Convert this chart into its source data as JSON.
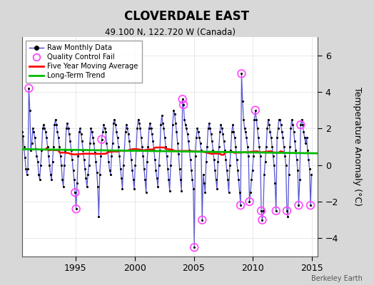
{
  "title": "CLOVERDALE EAST",
  "subtitle": "49.100 N, 122.720 W (Canada)",
  "ylabel": "Temperature Anomaly (°C)",
  "attribution": "Berkeley Earth",
  "xlim": [
    1990.5,
    2015.5
  ],
  "ylim": [
    -5.0,
    7.0
  ],
  "yticks": [
    -4,
    -2,
    0,
    2,
    4,
    6
  ],
  "xticks": [
    1995,
    2000,
    2005,
    2010,
    2015
  ],
  "bg_color": "#d8d8d8",
  "plot_bg_color": "#ffffff",
  "line_color": "#4444cc",
  "dot_color": "#000000",
  "ma_color": "#ff0000",
  "trend_color": "#00bb00",
  "qc_color": "#ff44ff",
  "raw_data": [
    [
      1990.042,
      0.6
    ],
    [
      1990.125,
      2.2
    ],
    [
      1990.208,
      1.3
    ],
    [
      1990.292,
      0.8
    ],
    [
      1990.375,
      1.5
    ],
    [
      1990.458,
      1.8
    ],
    [
      1990.542,
      1.6
    ],
    [
      1990.625,
      1.0
    ],
    [
      1990.708,
      0.4
    ],
    [
      1990.792,
      -0.2
    ],
    [
      1990.875,
      -0.5
    ],
    [
      1990.958,
      -0.2
    ],
    [
      1991.042,
      4.2
    ],
    [
      1991.125,
      3.0
    ],
    [
      1991.208,
      0.8
    ],
    [
      1991.292,
      1.2
    ],
    [
      1991.375,
      2.0
    ],
    [
      1991.458,
      1.8
    ],
    [
      1991.542,
      1.5
    ],
    [
      1991.625,
      0.9
    ],
    [
      1991.708,
      0.5
    ],
    [
      1991.792,
      0.2
    ],
    [
      1991.875,
      -0.5
    ],
    [
      1991.958,
      -0.8
    ],
    [
      1992.042,
      0.0
    ],
    [
      1992.125,
      0.8
    ],
    [
      1992.208,
      2.0
    ],
    [
      1992.292,
      2.2
    ],
    [
      1992.375,
      2.0
    ],
    [
      1992.458,
      1.8
    ],
    [
      1992.542,
      1.5
    ],
    [
      1992.625,
      1.0
    ],
    [
      1992.708,
      0.5
    ],
    [
      1992.792,
      0.0
    ],
    [
      1992.875,
      -0.5
    ],
    [
      1992.958,
      -0.8
    ],
    [
      1993.042,
      0.2
    ],
    [
      1993.125,
      1.0
    ],
    [
      1993.208,
      2.2
    ],
    [
      1993.292,
      2.5
    ],
    [
      1993.375,
      2.2
    ],
    [
      1993.458,
      1.8
    ],
    [
      1993.542,
      1.5
    ],
    [
      1993.625,
      1.0
    ],
    [
      1993.708,
      0.5
    ],
    [
      1993.792,
      0.0
    ],
    [
      1993.875,
      -0.8
    ],
    [
      1993.958,
      -1.2
    ],
    [
      1994.042,
      0.0
    ],
    [
      1994.125,
      0.8
    ],
    [
      1994.208,
      2.0
    ],
    [
      1994.292,
      2.3
    ],
    [
      1994.375,
      2.0
    ],
    [
      1994.458,
      1.7
    ],
    [
      1994.542,
      1.3
    ],
    [
      1994.625,
      0.8
    ],
    [
      1994.708,
      0.3
    ],
    [
      1994.792,
      -0.3
    ],
    [
      1994.875,
      -0.8
    ],
    [
      1994.958,
      -1.5
    ],
    [
      1995.042,
      -2.4
    ],
    [
      1995.125,
      -1.0
    ],
    [
      1995.208,
      0.5
    ],
    [
      1995.292,
      1.8
    ],
    [
      1995.375,
      2.0
    ],
    [
      1995.458,
      1.7
    ],
    [
      1995.542,
      1.3
    ],
    [
      1995.625,
      0.8
    ],
    [
      1995.708,
      0.3
    ],
    [
      1995.792,
      -0.2
    ],
    [
      1995.875,
      -0.7
    ],
    [
      1995.958,
      -1.2
    ],
    [
      1996.042,
      -0.5
    ],
    [
      1996.125,
      0.0
    ],
    [
      1996.208,
      1.2
    ],
    [
      1996.292,
      2.0
    ],
    [
      1996.375,
      1.8
    ],
    [
      1996.458,
      1.5
    ],
    [
      1996.542,
      1.2
    ],
    [
      1996.625,
      0.7
    ],
    [
      1996.708,
      0.2
    ],
    [
      1996.792,
      -0.4
    ],
    [
      1996.875,
      -1.2
    ],
    [
      1996.958,
      -2.8
    ],
    [
      1997.042,
      -0.5
    ],
    [
      1997.125,
      0.5
    ],
    [
      1997.208,
      1.4
    ],
    [
      1997.292,
      1.8
    ],
    [
      1997.375,
      2.2
    ],
    [
      1997.458,
      2.0
    ],
    [
      1997.542,
      1.8
    ],
    [
      1997.625,
      1.2
    ],
    [
      1997.708,
      0.8
    ],
    [
      1997.792,
      0.2
    ],
    [
      1997.875,
      -0.3
    ],
    [
      1997.958,
      -0.5
    ],
    [
      1998.042,
      0.5
    ],
    [
      1998.125,
      1.2
    ],
    [
      1998.208,
      2.3
    ],
    [
      1998.292,
      2.5
    ],
    [
      1998.375,
      2.2
    ],
    [
      1998.458,
      1.8
    ],
    [
      1998.542,
      1.5
    ],
    [
      1998.625,
      1.0
    ],
    [
      1998.708,
      0.5
    ],
    [
      1998.792,
      -0.2
    ],
    [
      1998.875,
      -0.7
    ],
    [
      1998.958,
      -1.3
    ],
    [
      1999.042,
      0.0
    ],
    [
      1999.125,
      0.8
    ],
    [
      1999.208,
      1.8
    ],
    [
      1999.292,
      2.2
    ],
    [
      1999.375,
      2.0
    ],
    [
      1999.458,
      1.7
    ],
    [
      1999.542,
      1.3
    ],
    [
      1999.625,
      0.8
    ],
    [
      1999.708,
      0.3
    ],
    [
      1999.792,
      -0.3
    ],
    [
      1999.875,
      -0.8
    ],
    [
      1999.958,
      -1.3
    ],
    [
      2000.042,
      0.0
    ],
    [
      2000.125,
      0.8
    ],
    [
      2000.208,
      2.0
    ],
    [
      2000.292,
      2.5
    ],
    [
      2000.375,
      2.3
    ],
    [
      2000.458,
      2.0
    ],
    [
      2000.542,
      1.5
    ],
    [
      2000.625,
      1.0
    ],
    [
      2000.708,
      0.5
    ],
    [
      2000.792,
      -0.2
    ],
    [
      2000.875,
      -0.8
    ],
    [
      2000.958,
      -1.5
    ],
    [
      2001.042,
      0.2
    ],
    [
      2001.125,
      1.0
    ],
    [
      2001.208,
      2.0
    ],
    [
      2001.292,
      2.3
    ],
    [
      2001.375,
      2.0
    ],
    [
      2001.458,
      1.7
    ],
    [
      2001.542,
      1.3
    ],
    [
      2001.625,
      0.8
    ],
    [
      2001.708,
      0.3
    ],
    [
      2001.792,
      -0.3
    ],
    [
      2001.875,
      -0.7
    ],
    [
      2001.958,
      -1.2
    ],
    [
      2002.042,
      0.0
    ],
    [
      2002.125,
      0.8
    ],
    [
      2002.208,
      2.2
    ],
    [
      2002.292,
      2.7
    ],
    [
      2002.375,
      2.3
    ],
    [
      2002.458,
      2.0
    ],
    [
      2002.542,
      1.5
    ],
    [
      2002.625,
      1.0
    ],
    [
      2002.708,
      0.5
    ],
    [
      2002.792,
      -0.2
    ],
    [
      2002.875,
      -0.8
    ],
    [
      2002.958,
      -1.4
    ],
    [
      2003.042,
      0.0
    ],
    [
      2003.125,
      0.8
    ],
    [
      2003.208,
      2.2
    ],
    [
      2003.292,
      3.0
    ],
    [
      2003.375,
      2.8
    ],
    [
      2003.458,
      2.3
    ],
    [
      2003.542,
      1.8
    ],
    [
      2003.625,
      1.2
    ],
    [
      2003.708,
      0.6
    ],
    [
      2003.792,
      -0.2
    ],
    [
      2003.875,
      -0.8
    ],
    [
      2003.958,
      -1.4
    ],
    [
      2004.042,
      3.6
    ],
    [
      2004.125,
      3.3
    ],
    [
      2004.208,
      2.5
    ],
    [
      2004.292,
      2.2
    ],
    [
      2004.375,
      2.0
    ],
    [
      2004.458,
      1.7
    ],
    [
      2004.542,
      1.3
    ],
    [
      2004.625,
      0.8
    ],
    [
      2004.708,
      0.3
    ],
    [
      2004.792,
      -0.3
    ],
    [
      2004.875,
      -0.8
    ],
    [
      2004.958,
      -1.3
    ],
    [
      2005.042,
      -4.5
    ],
    [
      2005.125,
      0.5
    ],
    [
      2005.208,
      1.5
    ],
    [
      2005.292,
      2.0
    ],
    [
      2005.375,
      1.8
    ],
    [
      2005.458,
      1.5
    ],
    [
      2005.542,
      1.2
    ],
    [
      2005.625,
      0.8
    ],
    [
      2005.708,
      -3.0
    ],
    [
      2005.792,
      -0.5
    ],
    [
      2005.875,
      -1.0
    ],
    [
      2005.958,
      -1.5
    ],
    [
      2006.042,
      0.2
    ],
    [
      2006.125,
      1.0
    ],
    [
      2006.208,
      2.0
    ],
    [
      2006.292,
      2.3
    ],
    [
      2006.375,
      2.0
    ],
    [
      2006.458,
      1.7
    ],
    [
      2006.542,
      1.3
    ],
    [
      2006.625,
      0.8
    ],
    [
      2006.708,
      0.3
    ],
    [
      2006.792,
      -0.3
    ],
    [
      2006.875,
      -0.8
    ],
    [
      2006.958,
      -1.3
    ],
    [
      2007.042,
      0.2
    ],
    [
      2007.125,
      1.0
    ],
    [
      2007.208,
      1.8
    ],
    [
      2007.292,
      2.2
    ],
    [
      2007.375,
      2.0
    ],
    [
      2007.458,
      1.7
    ],
    [
      2007.542,
      1.3
    ],
    [
      2007.625,
      0.8
    ],
    [
      2007.708,
      0.3
    ],
    [
      2007.792,
      -0.3
    ],
    [
      2007.875,
      -0.8
    ],
    [
      2007.958,
      -1.5
    ],
    [
      2008.042,
      0.0
    ],
    [
      2008.125,
      0.8
    ],
    [
      2008.208,
      1.8
    ],
    [
      2008.292,
      2.2
    ],
    [
      2008.375,
      1.8
    ],
    [
      2008.458,
      1.5
    ],
    [
      2008.542,
      1.0
    ],
    [
      2008.625,
      0.3
    ],
    [
      2008.708,
      -0.3
    ],
    [
      2008.792,
      -0.8
    ],
    [
      2008.875,
      -1.5
    ],
    [
      2008.958,
      -2.2
    ],
    [
      2009.042,
      5.0
    ],
    [
      2009.125,
      3.5
    ],
    [
      2009.208,
      2.5
    ],
    [
      2009.292,
      2.0
    ],
    [
      2009.375,
      1.8
    ],
    [
      2009.458,
      1.5
    ],
    [
      2009.542,
      1.0
    ],
    [
      2009.625,
      0.5
    ],
    [
      2009.708,
      -2.0
    ],
    [
      2009.792,
      -1.5
    ],
    [
      2009.875,
      -0.8
    ],
    [
      2009.958,
      -0.3
    ],
    [
      2010.042,
      0.5
    ],
    [
      2010.125,
      2.5
    ],
    [
      2010.208,
      3.0
    ],
    [
      2010.292,
      2.5
    ],
    [
      2010.375,
      2.0
    ],
    [
      2010.458,
      1.5
    ],
    [
      2010.542,
      1.0
    ],
    [
      2010.625,
      0.5
    ],
    [
      2010.708,
      -2.5
    ],
    [
      2010.792,
      -3.0
    ],
    [
      2010.875,
      -2.5
    ],
    [
      2010.958,
      -0.5
    ],
    [
      2011.042,
      0.2
    ],
    [
      2011.125,
      1.0
    ],
    [
      2011.208,
      2.0
    ],
    [
      2011.292,
      2.5
    ],
    [
      2011.375,
      2.2
    ],
    [
      2011.458,
      1.8
    ],
    [
      2011.542,
      1.5
    ],
    [
      2011.625,
      1.0
    ],
    [
      2011.708,
      0.5
    ],
    [
      2011.792,
      0.0
    ],
    [
      2011.875,
      -1.0
    ],
    [
      2011.958,
      -2.5
    ],
    [
      2012.042,
      1.5
    ],
    [
      2012.125,
      2.0
    ],
    [
      2012.208,
      2.5
    ],
    [
      2012.292,
      2.5
    ],
    [
      2012.375,
      2.2
    ],
    [
      2012.458,
      1.8
    ],
    [
      2012.542,
      1.5
    ],
    [
      2012.625,
      1.0
    ],
    [
      2012.708,
      0.5
    ],
    [
      2012.792,
      0.0
    ],
    [
      2012.875,
      -2.5
    ],
    [
      2012.958,
      -2.8
    ],
    [
      2013.042,
      -0.5
    ],
    [
      2013.125,
      1.0
    ],
    [
      2013.208,
      2.0
    ],
    [
      2013.292,
      2.5
    ],
    [
      2013.375,
      2.2
    ],
    [
      2013.458,
      1.8
    ],
    [
      2013.542,
      1.3
    ],
    [
      2013.625,
      0.8
    ],
    [
      2013.708,
      0.3
    ],
    [
      2013.792,
      -0.3
    ],
    [
      2013.875,
      -2.2
    ],
    [
      2013.958,
      -0.8
    ],
    [
      2014.042,
      2.2
    ],
    [
      2014.125,
      2.5
    ],
    [
      2014.208,
      2.2
    ],
    [
      2014.292,
      1.8
    ],
    [
      2014.375,
      1.5
    ],
    [
      2014.458,
      1.2
    ],
    [
      2014.542,
      1.5
    ],
    [
      2014.625,
      0.8
    ],
    [
      2014.708,
      0.3
    ],
    [
      2014.792,
      -0.2
    ],
    [
      2014.875,
      -2.2
    ],
    [
      2014.958,
      -0.5
    ]
  ],
  "qc_fails": [
    [
      1991.042,
      4.2
    ],
    [
      1994.958,
      -1.5
    ],
    [
      1995.042,
      -2.4
    ],
    [
      1997.208,
      1.4
    ],
    [
      2004.042,
      3.6
    ],
    [
      2004.125,
      3.3
    ],
    [
      2005.042,
      -4.5
    ],
    [
      2005.708,
      -3.0
    ],
    [
      2008.958,
      -2.2
    ],
    [
      2009.042,
      5.0
    ],
    [
      2009.708,
      -2.0
    ],
    [
      2010.208,
      3.0
    ],
    [
      2010.708,
      -2.5
    ],
    [
      2010.792,
      -3.0
    ],
    [
      2011.958,
      -2.5
    ],
    [
      2012.875,
      -2.5
    ],
    [
      2013.875,
      -2.2
    ],
    [
      2014.042,
      2.2
    ],
    [
      2014.875,
      -2.2
    ]
  ]
}
